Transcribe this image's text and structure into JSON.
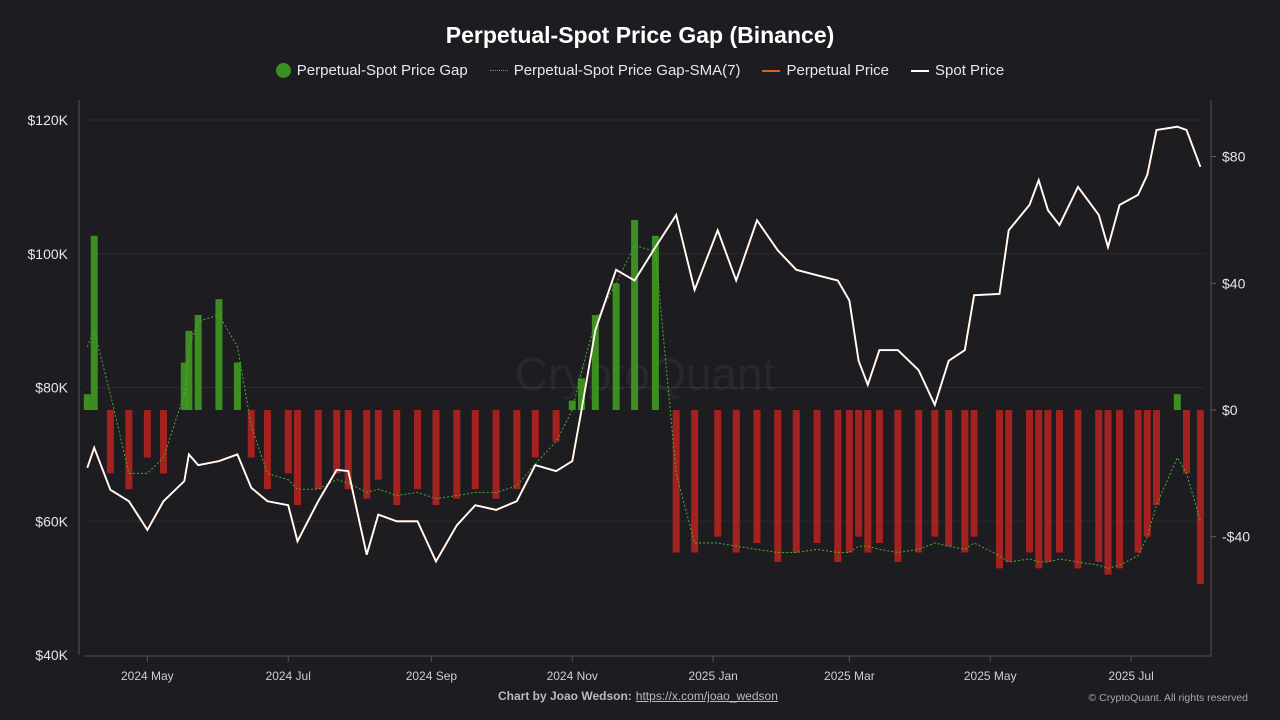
{
  "chart_data": {
    "type": "bar+line",
    "title": "Perpetual-Spot Price Gap (Binance)",
    "legend": [
      "Perpetual-Spot Price Gap",
      "Perpetual-Spot Price Gap-SMA(7)",
      "Perpetual Price",
      "Spot Price"
    ],
    "legend_position": "top-center",
    "colors": {
      "gap_positive": "#3f9b1f",
      "gap_negative": "#b3221f",
      "sma": "#4caf2a",
      "perpetual": "#d9651c",
      "spot": "#ffffff",
      "background": "#1c1c21"
    },
    "left_axis": {
      "ticks": [
        "$40K",
        "$60K",
        "$80K",
        "$100K",
        "$120K"
      ],
      "tick_values": [
        40000,
        60000,
        80000,
        100000,
        120000
      ],
      "range": [
        40000,
        120000
      ]
    },
    "right_axis": {
      "tick_labels": [
        "-$40",
        "$0",
        "$40",
        "$80"
      ],
      "tick_values": [
        -40,
        0,
        40,
        80
      ],
      "range": [
        -77,
        100
      ]
    },
    "x_axis": {
      "ticks": [
        "2024 May",
        "2024 Jul",
        "2024 Sep",
        "2024 Nov",
        "2025 Jan",
        "2025 Mar",
        "2025 May",
        "2025 Jul"
      ],
      "tick_dates": [
        "2024-05-01",
        "2024-07-01",
        "2024-09-01",
        "2024-11-01",
        "2025-01-01",
        "2025-03-01",
        "2025-05-01",
        "2025-07-01"
      ],
      "range": [
        "2024-04-04",
        "2025-08-02"
      ]
    },
    "grid": "horizontal",
    "dates": [
      "2024-04-05",
      "2024-04-08",
      "2024-04-15",
      "2024-04-23",
      "2024-05-01",
      "2024-05-08",
      "2024-05-17",
      "2024-05-19",
      "2024-05-23",
      "2024-06-01",
      "2024-06-09",
      "2024-06-15",
      "2024-06-22",
      "2024-07-01",
      "2024-07-05",
      "2024-07-14",
      "2024-07-22",
      "2024-07-27",
      "2024-08-04",
      "2024-08-09",
      "2024-08-17",
      "2024-08-26",
      "2024-09-03",
      "2024-09-12",
      "2024-09-20",
      "2024-09-29",
      "2024-10-08",
      "2024-10-16",
      "2024-10-25",
      "2024-11-01",
      "2024-11-05",
      "2024-11-11",
      "2024-11-20",
      "2024-11-28",
      "2024-12-07",
      "2024-12-16",
      "2024-12-24",
      "2025-01-03",
      "2025-01-11",
      "2025-01-20",
      "2025-01-29",
      "2025-02-06",
      "2025-02-15",
      "2025-02-24",
      "2025-03-01",
      "2025-03-05",
      "2025-03-09",
      "2025-03-14",
      "2025-03-22",
      "2025-03-31",
      "2025-04-07",
      "2025-04-13",
      "2025-04-20",
      "2025-04-24",
      "2025-05-05",
      "2025-05-09",
      "2025-05-18",
      "2025-05-22",
      "2025-05-26",
      "2025-05-31",
      "2025-06-08",
      "2025-06-17",
      "2025-06-21",
      "2025-06-26",
      "2025-07-04",
      "2025-07-08",
      "2025-07-12",
      "2025-07-21",
      "2025-07-25",
      "2025-07-31"
    ],
    "spot_price": [
      68000,
      71000,
      64700,
      63000,
      58700,
      63000,
      66000,
      70000,
      68400,
      69000,
      70000,
      65000,
      63000,
      62400,
      57000,
      63000,
      67700,
      67500,
      55000,
      61000,
      60000,
      60000,
      54000,
      59400,
      62400,
      61700,
      63000,
      68400,
      67500,
      69000,
      76600,
      88600,
      97600,
      96000,
      101000,
      105800,
      94600,
      103500,
      96000,
      105000,
      100500,
      97600,
      96800,
      96000,
      93000,
      84000,
      80400,
      85600,
      85600,
      82600,
      77400,
      84000,
      85600,
      93800,
      94000,
      103500,
      107300,
      111000,
      106500,
      104300,
      110000,
      105800,
      101000,
      107300,
      108800,
      111800,
      118500,
      119000,
      118500,
      113000
    ],
    "gap": [
      5,
      55,
      -20,
      -25,
      -15,
      -20,
      15,
      25,
      30,
      35,
      15,
      -15,
      -25,
      -20,
      -30,
      -25,
      -20,
      -25,
      -28,
      -22,
      -30,
      -25,
      -30,
      -28,
      -25,
      -28,
      -25,
      -15,
      -10,
      3,
      10,
      30,
      40,
      60,
      55,
      -45,
      -45,
      -40,
      -45,
      -42,
      -48,
      -45,
      -42,
      -48,
      -45,
      -40,
      -45,
      -42,
      -48,
      -45,
      -40,
      -43,
      -45,
      -40,
      -50,
      -48,
      -45,
      -50,
      -48,
      -45,
      -50,
      -48,
      -52,
      -50,
      -45,
      -40,
      -30,
      5,
      -20,
      -55
    ],
    "sma": [
      20,
      25,
      5,
      -20,
      -20,
      -15,
      5,
      20,
      28,
      30,
      20,
      -5,
      -20,
      -22,
      -25,
      -25,
      -22,
      -23,
      -26,
      -25,
      -27,
      -26,
      -28,
      -27,
      -26,
      -26,
      -24,
      -17,
      -10,
      0,
      12,
      28,
      40,
      52,
      50,
      -20,
      -42,
      -42,
      -43,
      -44,
      -45,
      -45,
      -44,
      -45,
      -45,
      -43,
      -43,
      -44,
      -45,
      -44,
      -42,
      -43,
      -44,
      -42,
      -46,
      -48,
      -47,
      -48,
      -48,
      -47,
      -48,
      -49,
      -50,
      -49,
      -46,
      -40,
      -30,
      -15,
      -20,
      -35
    ]
  },
  "footer": {
    "credit_label": "Chart by Joao Wedson:",
    "credit_link": "https://x.com/joao_wedson",
    "copyright": "© CryptoQuant. All rights reserved",
    "watermark": "CryptoQuant"
  }
}
